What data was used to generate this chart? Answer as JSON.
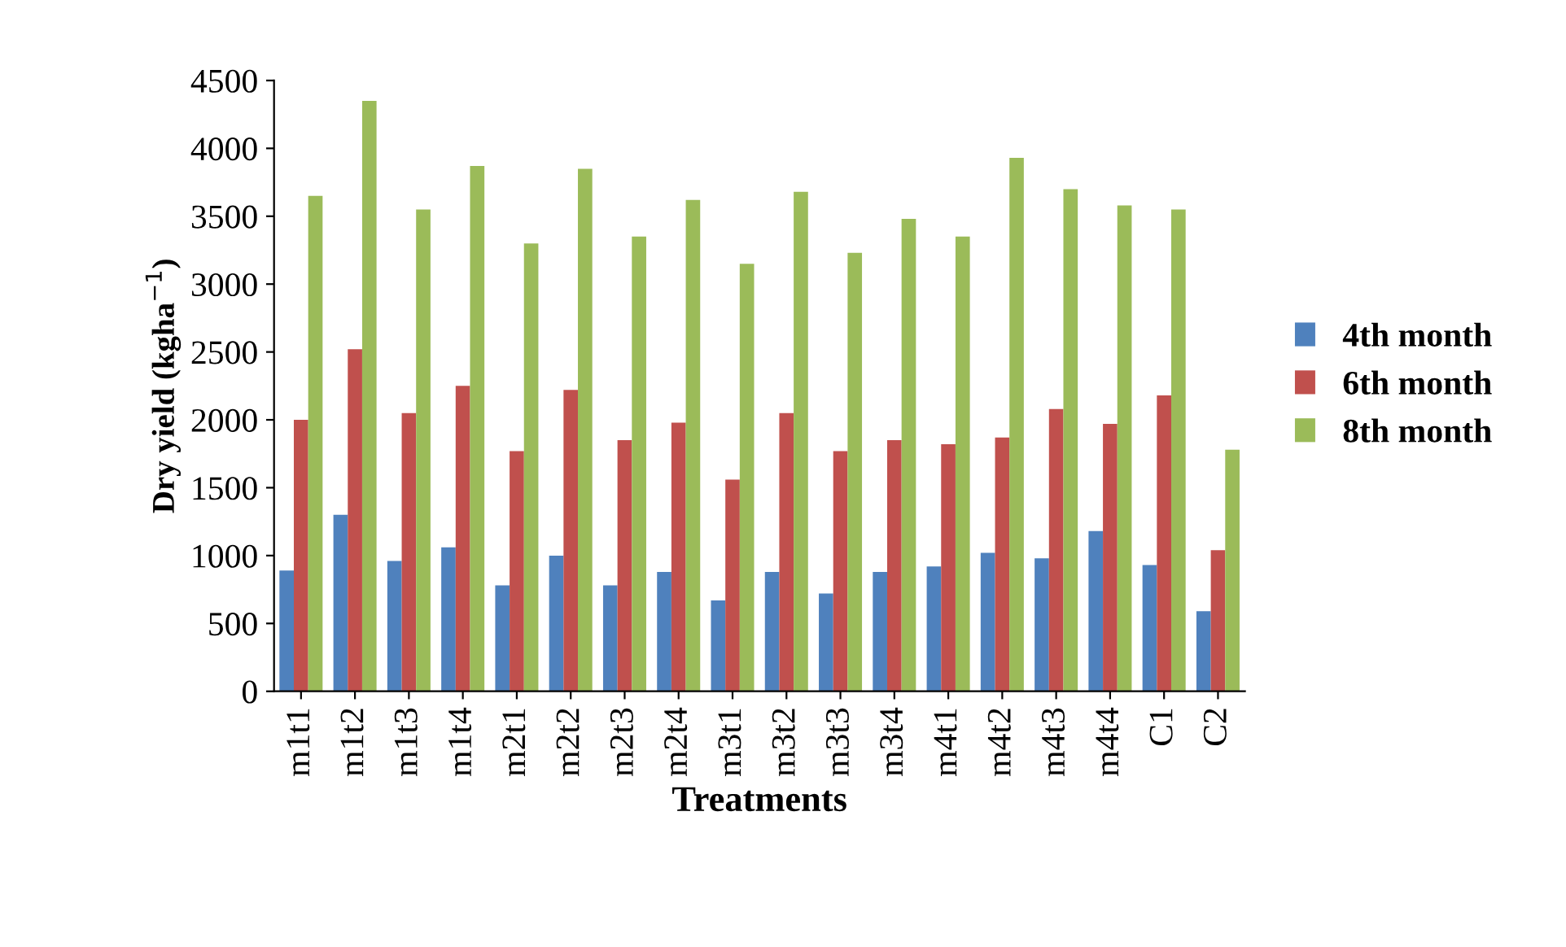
{
  "chart_data": {
    "type": "bar",
    "xlabel": "Treatments",
    "ylabel": "Dry yield (kgha$^{−1}$)",
    "categories": [
      "m1t1",
      "m1t2",
      "m1t3",
      "m1t4",
      "m2t1",
      "m2t2",
      "m2t3",
      "m2t4",
      "m3t1",
      "m3t2",
      "m3t3",
      "m3t4",
      "m4t1",
      "m4t2",
      "m4t3",
      "m4t4",
      "C1",
      "C2"
    ],
    "series": [
      {
        "name": "4th month",
        "color": "#4f81bd",
        "values": [
          890,
          1300,
          960,
          1060,
          780,
          1000,
          780,
          880,
          670,
          880,
          720,
          880,
          920,
          1020,
          980,
          1180,
          930,
          590
        ]
      },
      {
        "name": "6th month",
        "color": "#c0504d",
        "values": [
          2000,
          2520,
          2050,
          2250,
          1770,
          2220,
          1850,
          1980,
          1560,
          2050,
          1770,
          1850,
          1820,
          1870,
          2080,
          1970,
          2180,
          1040
        ]
      },
      {
        "name": "8th month",
        "color": "#9bbb59",
        "values": [
          3650,
          4350,
          3550,
          3870,
          3300,
          3850,
          3350,
          3620,
          3150,
          3680,
          3230,
          3480,
          3350,
          3930,
          3700,
          3580,
          3550,
          1780
        ]
      }
    ],
    "ylim": [
      0,
      4500
    ],
    "yticks": [
      0,
      500,
      1000,
      1500,
      2000,
      2500,
      3000,
      3500,
      4000,
      4500
    ],
    "legend": "right"
  }
}
